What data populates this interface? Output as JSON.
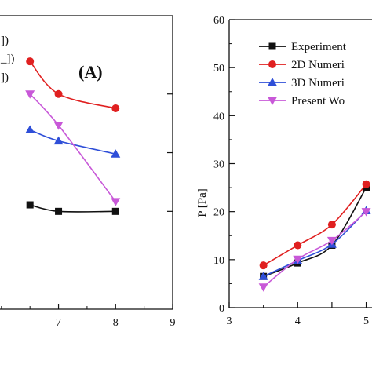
{
  "chart_data": [
    {
      "type": "line",
      "panel_label": "(A)",
      "legend_fragments": [
        "])",
        "_])",
        "])"
      ],
      "x": [
        6.5,
        7,
        8
      ],
      "xticks": [
        "7",
        "8",
        "9"
      ],
      "xlim": [
        5.7,
        9
      ],
      "ylim": [
        -30,
        420
      ],
      "series": [
        {
          "color": "#e02020",
          "marker": "circle",
          "values": [
            350,
            300,
            278
          ]
        },
        {
          "color": "#2f4fd8",
          "marker": "triangle-up",
          "values": [
            245,
            228,
            208
          ]
        },
        {
          "color": "#c858d8",
          "marker": "triangle-down",
          "values": [
            300,
            252,
            135
          ]
        },
        {
          "color": "#111111",
          "marker": "square",
          "values": [
            130,
            120,
            120
          ]
        }
      ]
    },
    {
      "type": "line",
      "ylabel": "P [Pa]",
      "x": [
        3.5,
        4,
        4.5,
        5
      ],
      "xlim": [
        3,
        5.2
      ],
      "ylim": [
        0,
        60
      ],
      "xticks": [
        "3",
        "4",
        "4.5",
        "5"
      ],
      "xtick_labels": [
        "3",
        "4",
        "",
        "5"
      ],
      "yticks": [
        "0",
        "10",
        "20",
        "30",
        "40",
        "50",
        "60"
      ],
      "legend": [
        "Experiment",
        "2D Numeri",
        "3D Numeri",
        "Present Wo"
      ],
      "series": [
        {
          "name": "Experiment",
          "color": "#111111",
          "marker": "square",
          "values": [
            6.5,
            9.3,
            13.0,
            25.0
          ]
        },
        {
          "name": "2D Numeri",
          "color": "#e02020",
          "marker": "circle",
          "values": [
            8.8,
            13.0,
            17.3,
            25.7
          ]
        },
        {
          "name": "3D Numeri",
          "color": "#2f4fd8",
          "marker": "triangle-up",
          "values": [
            6.5,
            9.8,
            13.2,
            20.2
          ]
        },
        {
          "name": "Present Wo",
          "color": "#c858d8",
          "marker": "triangle-down",
          "values": [
            4.3,
            10.1,
            14.0,
            20.0
          ]
        }
      ]
    }
  ]
}
